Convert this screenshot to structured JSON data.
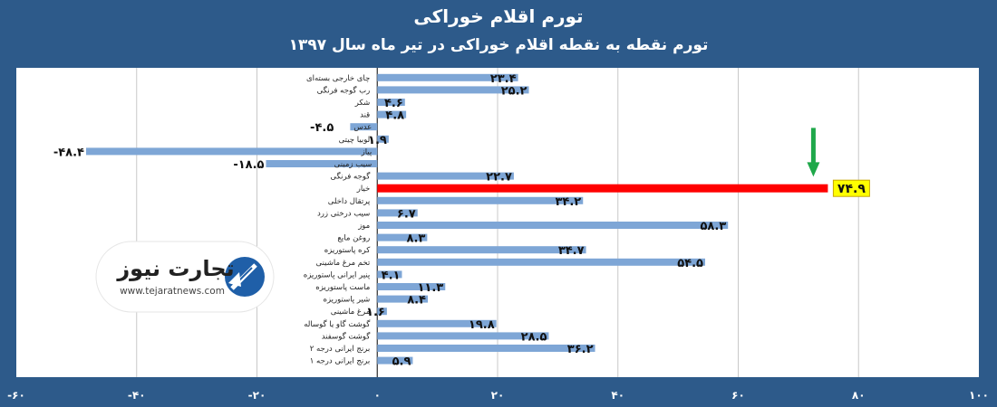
{
  "title": "تورم اقلام خوراکی",
  "subtitle": "تورم نقطه به نقطه اقلام خوراکی در تیر ماه سال ۱۳۹۷",
  "logo": {
    "brand": "تجارت نیوز",
    "url": "www.tejaratnews.com",
    "icon": "tejarat-news-logo-icon"
  },
  "colors": {
    "bar": "#7ea6d6",
    "highlight": "#ff0000",
    "label_highlight_bg": "#ffff00",
    "arrow": "#1fa84a",
    "background": "#2d5a8a"
  },
  "chart_data": {
    "type": "bar",
    "orientation": "horizontal",
    "title": "تورم اقلام خوراکی",
    "subtitle": "تورم نقطه به نقطه اقلام خوراکی در تیر ماه سال ۱۳۹۷",
    "xlim": [
      -60,
      100
    ],
    "xticks": [
      -60,
      -40,
      -20,
      0,
      20,
      40,
      60,
      80,
      100
    ],
    "xtick_labels": [
      "-۶۰",
      "-۴۰",
      "-۲۰",
      "۰",
      "۲۰",
      "۴۰",
      "۶۰",
      "۸۰",
      "۱۰۰"
    ],
    "grid": true,
    "highlight_category": "خیار",
    "categories": [
      "چای خارجی بسته‌ای",
      "رب گوجه فرنگی",
      "شکر",
      "قند",
      "عدس",
      "لوبیا چیتی",
      "پیاز",
      "سیب زمینی",
      "گوجه فرنگی",
      "خیار",
      "پرتقال داخلی",
      "سیب درختی زرد",
      "موز",
      "روغن مایع",
      "کره پاستوریزه",
      "تخم مرغ ماشینی",
      "پنیر ایرانی پاستوریزه",
      "ماست پاستوریزه",
      "شیر پاستوریزه",
      "مرغ ماشینی",
      "گوشت گاو یا گوساله",
      "گوشت گوسفند",
      "برنج ایرانی درجه ۲",
      "برنج ایرانی درجه ۱"
    ],
    "values": [
      23.4,
      25.2,
      4.6,
      4.8,
      -4.5,
      1.9,
      -48.4,
      -18.5,
      22.7,
      74.9,
      34.2,
      6.7,
      58.3,
      8.3,
      34.7,
      54.5,
      4.1,
      11.3,
      8.4,
      1.6,
      19.8,
      28.5,
      36.2,
      5.9
    ],
    "value_labels": [
      "۲۳.۴",
      "۲۵.۲",
      "۴.۶",
      "۴.۸",
      "-۴.۵",
      "۱.۹",
      "-۴۸.۴",
      "-۱۸.۵",
      "۲۲.۷",
      "۷۴.۹",
      "۳۴.۲",
      "۶.۷",
      "۵۸.۳",
      "۸.۳",
      "۳۴.۷",
      "۵۴.۵",
      "۴.۱",
      "۱۱.۳",
      "۸.۴",
      "۱.۶",
      "۱۹.۸",
      "۲۸.۵",
      "۳۶.۲",
      "۵.۹"
    ]
  }
}
